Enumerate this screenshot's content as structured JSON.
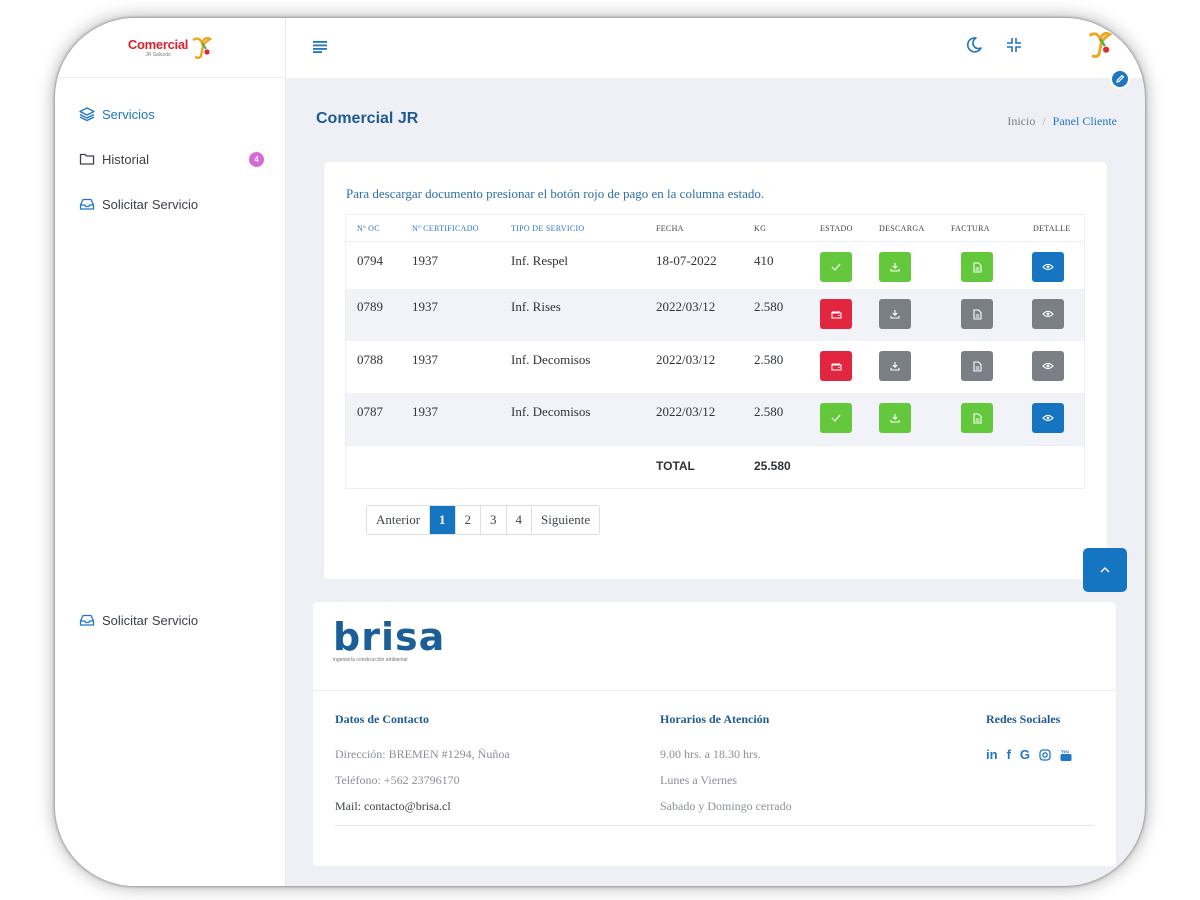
{
  "brand": {
    "logo_text": "Comercial",
    "logo_sub": "JR Salcedo"
  },
  "sidebar": {
    "items": [
      {
        "label": "Servicios"
      },
      {
        "label": "Historial",
        "badge": "4"
      },
      {
        "label": "Solicitar Servicio"
      }
    ],
    "bottom_item": {
      "label": "Solicitar Servicio"
    }
  },
  "header": {
    "title": "Comercial JR",
    "breadcrumb": [
      "Inicio",
      "Panel Cliente"
    ]
  },
  "main": {
    "instruction": "Para descargar documento presionar el botón rojo de pago en la columna estado.",
    "table": {
      "columns": [
        "Nº OC",
        "Nº CERTIFICADO",
        "TIPO DE SERVICIO",
        "FECHA",
        "KG",
        "ESTADO",
        "DESCARGA",
        "FACTURA",
        "DETALLE"
      ],
      "rows": [
        {
          "oc": "0794",
          "cert": "1937",
          "tipo": "Inf. Respel",
          "fecha": "18-07-2022",
          "kg": "410",
          "estado": "paid"
        },
        {
          "oc": "0789",
          "cert": "1937",
          "tipo": "Inf. Rises",
          "fecha": "2022/03/12",
          "kg": "2.580",
          "estado": "pending"
        },
        {
          "oc": "0788",
          "cert": "1937",
          "tipo": "Inf. Decomisos",
          "fecha": "2022/03/12",
          "kg": "2.580",
          "estado": "pending"
        },
        {
          "oc": "0787",
          "cert": "1937",
          "tipo": "Inf. Decomisos",
          "fecha": "2022/03/12",
          "kg": "2.580",
          "estado": "paid"
        }
      ],
      "total_label": "TOTAL",
      "total_value": "25.580"
    },
    "pagination": {
      "prev": "Anterior",
      "pages": [
        "1",
        "2",
        "3",
        "4"
      ],
      "current": "1",
      "next": "Siguiente"
    }
  },
  "footer": {
    "logo_text": "brisa",
    "logo_tagline": "ingeniería construcción ambiental",
    "contact": {
      "title": "Datos de Contacto",
      "address": "Dirección: BREMEN #1294, Ñuñoa",
      "phone": "Teléfono: +562 23796170",
      "mail": "Mail: contacto@brisa.cl"
    },
    "hours": {
      "title": "Horarios de Atención",
      "line1": "9.00 hrs. a 18.30 hrs.",
      "line2": "Lunes a Viernes",
      "line3": "Sabado y Domingo cerrado"
    },
    "social": {
      "title": "Redes Sociales",
      "icons": [
        "linkedin-icon",
        "facebook-icon",
        "google-icon",
        "instagram-icon",
        "youtube-icon"
      ]
    }
  },
  "colors": {
    "primary": "#1575c1",
    "success": "#63c83b",
    "danger": "#e3263f",
    "muted": "#7a7f85",
    "badge": "#d868dc"
  }
}
